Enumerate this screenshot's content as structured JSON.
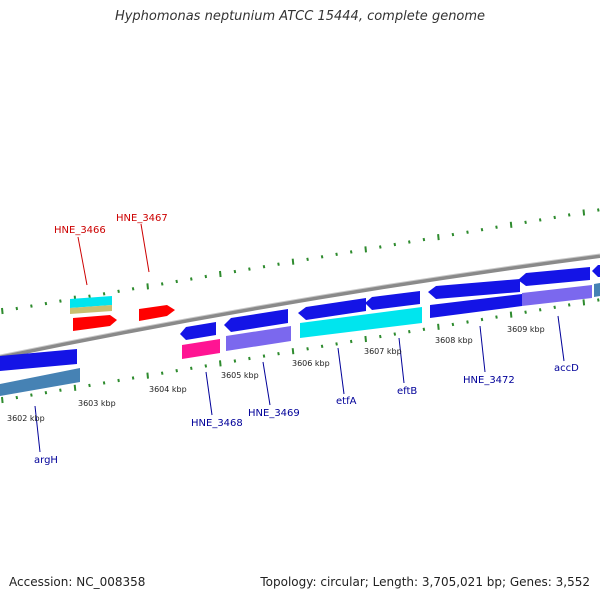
{
  "title": "Hyphomonas neptunium ATCC 15444, complete genome",
  "footer": {
    "accession": "Accession: NC_008358",
    "stats": "Topology: circular; Length: 3,705,021 bp; Genes: 3,552"
  },
  "colors": {
    "backbone": "#888888",
    "tick": "#2e8b2e",
    "label_forward": "#cc0000",
    "label_reverse": "#000099",
    "gene_blue": "#1414e6",
    "gene_red": "#ff0000",
    "gene_cyan": "#00e5ee",
    "gene_khaki": "#c8c070",
    "gene_pink": "#ff1493",
    "gene_purple": "#7b68ee",
    "gene_steel": "#4682b4"
  },
  "kbp_labels": [
    "3602 kbp",
    "3603 kbp",
    "3604 kbp",
    "3605 kbp",
    "3606 kbp",
    "3607 kbp",
    "3608 kbp",
    "3609 kbp"
  ],
  "gene_labels_forward": [
    "HNE_3466",
    "HNE_3467"
  ],
  "gene_labels_reverse": [
    "argH",
    "HNE_3468",
    "HNE_3469",
    "etfA",
    "eftB",
    "HNE_3472",
    "accD"
  ]
}
